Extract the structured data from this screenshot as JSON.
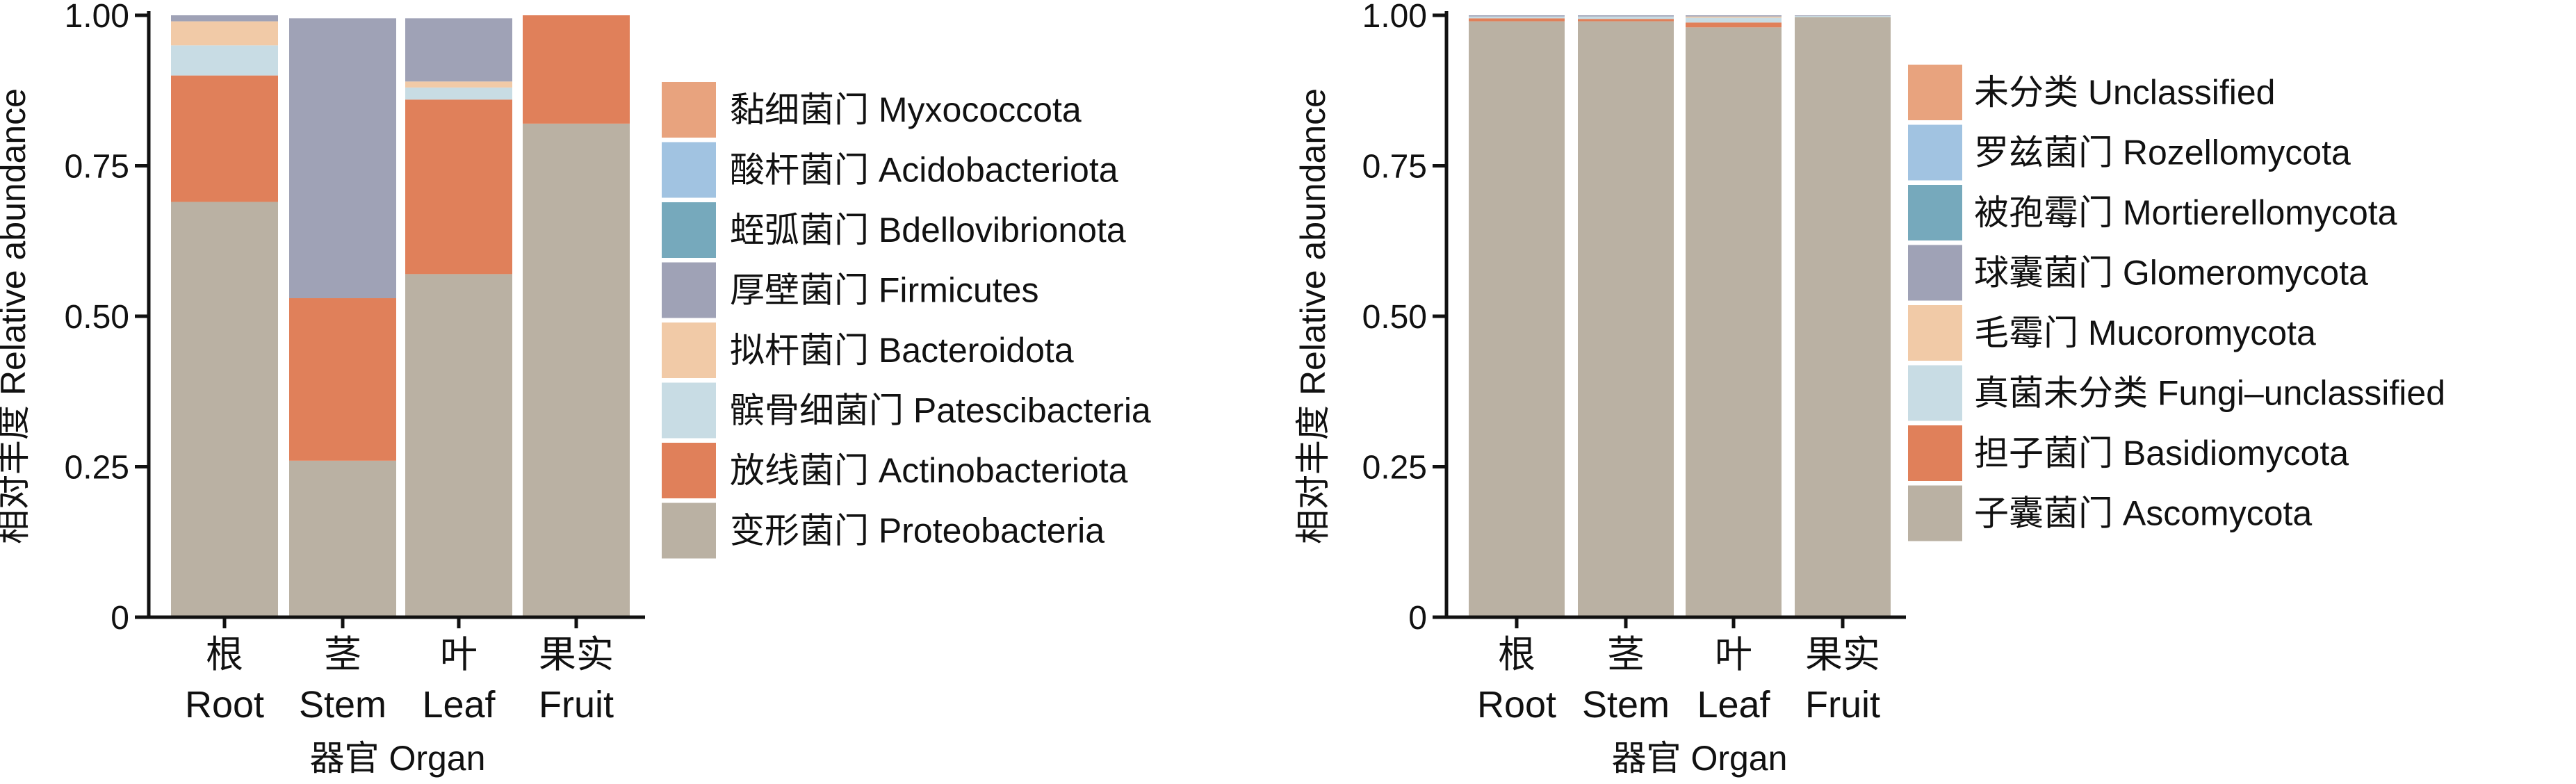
{
  "chart_data": [
    {
      "type": "bar",
      "stacked": true,
      "categories": [
        "根\nRoot",
        "茎\nStem",
        "叶\nLeaf",
        "果实\nFruit"
      ],
      "xlabel": "器官 Organ",
      "ylabel": "相对丰度 Relative abundance",
      "ylim": [
        0,
        1
      ],
      "yticks": [
        "0",
        "0.25",
        "0.50",
        "0.75",
        "1.00"
      ],
      "legend_position": "right",
      "series": [
        {
          "name": "变形菌门 Proteobacteria",
          "color": "#bab1a3",
          "values": [
            0.69,
            0.26,
            0.57,
            0.82
          ]
        },
        {
          "name": "放线菌门 Actinobacteriota",
          "color": "#e0805a",
          "values": [
            0.21,
            0.27,
            0.29,
            0.18
          ]
        },
        {
          "name": "髌骨细菌门 Patescibacteria",
          "color": "#c8dce4",
          "values": [
            0.05,
            0.0,
            0.02,
            0.0
          ]
        },
        {
          "name": "拟杆菌门 Bacteroidota",
          "color": "#f1caa7",
          "values": [
            0.04,
            0.0,
            0.01,
            0.0
          ]
        },
        {
          "name": "厚壁菌门 Firmicutes",
          "color": "#9fa2b6",
          "values": [
            0.01,
            0.465,
            0.105,
            0.0
          ]
        },
        {
          "name": "蛭弧菌门 Bdellovibrionota",
          "color": "#76a9bc",
          "values": [
            0.0,
            0.0,
            0.0,
            0.0
          ]
        },
        {
          "name": "酸杆菌门 Acidobacteriota",
          "color": "#a1c3e1",
          "values": [
            0.0,
            0.0,
            0.0,
            0.0
          ]
        },
        {
          "name": "黏细菌门 Myxococcota",
          "color": "#e8a37e",
          "values": [
            0.0,
            0.0,
            0.0,
            0.0
          ]
        }
      ]
    },
    {
      "type": "bar",
      "stacked": true,
      "categories": [
        "根\nRoot",
        "茎\nStem",
        "叶\nLeaf",
        "果实\nFruit"
      ],
      "xlabel": "器官 Organ",
      "ylabel": "相对丰度 Relative abundance",
      "ylim": [
        0,
        1
      ],
      "yticks": [
        "0",
        "0.25",
        "0.50",
        "0.75",
        "1.00"
      ],
      "legend_position": "right",
      "series": [
        {
          "name": "子囊菌门 Ascomycota",
          "color": "#bab1a3",
          "values": [
            0.99,
            0.99,
            0.98,
            0.997
          ]
        },
        {
          "name": "担子菌门 Basidiomycota",
          "color": "#e0805a",
          "values": [
            0.005,
            0.004,
            0.008,
            0.0
          ]
        },
        {
          "name": "真菌未分类 Fungi–unclassified",
          "color": "#c8dce4",
          "values": [
            0.003,
            0.004,
            0.008,
            0.002
          ]
        },
        {
          "name": "毛霉门 Mucoromycota",
          "color": "#f1caa7",
          "values": [
            0.0,
            0.0,
            0.002,
            0.0
          ]
        },
        {
          "name": "球囊菌门 Glomeromycota",
          "color": "#9fa2b6",
          "values": [
            0.002,
            0.002,
            0.002,
            0.001
          ]
        },
        {
          "name": "被孢霉门 Mortierellomycota",
          "color": "#76a9bc",
          "values": [
            0.0,
            0.0,
            0.0,
            0.0
          ]
        },
        {
          "name": "罗兹菌门 Rozellomycota",
          "color": "#a1c3e1",
          "values": [
            0.0,
            0.0,
            0.0,
            0.0
          ]
        },
        {
          "name": "未分类 Unclassified",
          "color": "#e8a37e",
          "values": [
            0.0,
            0.0,
            0.0,
            0.0
          ]
        }
      ]
    }
  ]
}
